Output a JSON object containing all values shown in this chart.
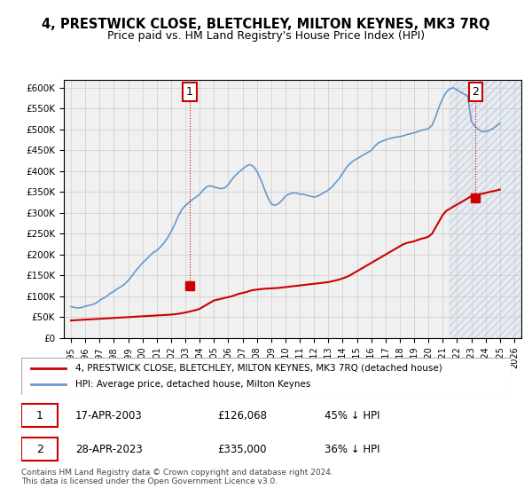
{
  "title": "4, PRESTWICK CLOSE, BLETCHLEY, MILTON KEYNES, MK3 7RQ",
  "subtitle": "Price paid vs. HM Land Registry's House Price Index (HPI)",
  "hpi_color": "#6699cc",
  "price_color": "#cc0000",
  "background_color": "#ffffff",
  "grid_color": "#cccccc",
  "ylim": [
    0,
    620000
  ],
  "yticks": [
    0,
    50000,
    100000,
    150000,
    200000,
    250000,
    300000,
    350000,
    400000,
    450000,
    500000,
    550000,
    600000
  ],
  "xlabel_years": [
    "1995",
    "1996",
    "1997",
    "1998",
    "1999",
    "2000",
    "2001",
    "2002",
    "2003",
    "2004",
    "2005",
    "2006",
    "2007",
    "2008",
    "2009",
    "2010",
    "2011",
    "2012",
    "2013",
    "2014",
    "2015",
    "2016",
    "2017",
    "2018",
    "2019",
    "2020",
    "2021",
    "2022",
    "2023",
    "2024",
    "2025",
    "2026"
  ],
  "transaction1": {
    "year": 2003.3,
    "price": 126068,
    "label": "1"
  },
  "transaction2": {
    "year": 2023.3,
    "price": 335000,
    "label": "2"
  },
  "legend_line1": "4, PRESTWICK CLOSE, BLETCHLEY, MILTON KEYNES, MK3 7RQ (detached house)",
  "legend_line2": "HPI: Average price, detached house, Milton Keynes",
  "footer": "Contains HM Land Registry data © Crown copyright and database right 2024.\nThis data is licensed under the Open Government Licence v3.0.",
  "hpi_data_x": [
    1995.0,
    1995.25,
    1995.5,
    1995.75,
    1996.0,
    1996.25,
    1996.5,
    1996.75,
    1997.0,
    1997.25,
    1997.5,
    1997.75,
    1998.0,
    1998.25,
    1998.5,
    1998.75,
    1999.0,
    1999.25,
    1999.5,
    1999.75,
    2000.0,
    2000.25,
    2000.5,
    2000.75,
    2001.0,
    2001.25,
    2001.5,
    2001.75,
    2002.0,
    2002.25,
    2002.5,
    2002.75,
    2003.0,
    2003.25,
    2003.5,
    2003.75,
    2004.0,
    2004.25,
    2004.5,
    2004.75,
    2005.0,
    2005.25,
    2005.5,
    2005.75,
    2006.0,
    2006.25,
    2006.5,
    2006.75,
    2007.0,
    2007.25,
    2007.5,
    2007.75,
    2008.0,
    2008.25,
    2008.5,
    2008.75,
    2009.0,
    2009.25,
    2009.5,
    2009.75,
    2010.0,
    2010.25,
    2010.5,
    2010.75,
    2011.0,
    2011.25,
    2011.5,
    2011.75,
    2012.0,
    2012.25,
    2012.5,
    2012.75,
    2013.0,
    2013.25,
    2013.5,
    2013.75,
    2014.0,
    2014.25,
    2014.5,
    2014.75,
    2015.0,
    2015.25,
    2015.5,
    2015.75,
    2016.0,
    2016.25,
    2016.5,
    2016.75,
    2017.0,
    2017.25,
    2017.5,
    2017.75,
    2018.0,
    2018.25,
    2018.5,
    2018.75,
    2019.0,
    2019.25,
    2019.5,
    2019.75,
    2020.0,
    2020.25,
    2020.5,
    2020.75,
    2021.0,
    2021.25,
    2021.5,
    2021.75,
    2022.0,
    2022.25,
    2022.5,
    2022.75,
    2023.0,
    2023.25,
    2023.5,
    2023.75,
    2024.0,
    2024.25,
    2024.5,
    2024.75,
    2025.0
  ],
  "hpi_data_y": [
    75000,
    73000,
    72000,
    73000,
    76000,
    78000,
    80000,
    84000,
    90000,
    95000,
    100000,
    107000,
    112000,
    118000,
    123000,
    129000,
    138000,
    148000,
    160000,
    170000,
    180000,
    188000,
    197000,
    205000,
    210000,
    218000,
    228000,
    240000,
    255000,
    272000,
    292000,
    308000,
    318000,
    325000,
    332000,
    338000,
    345000,
    355000,
    363000,
    365000,
    362000,
    360000,
    358000,
    360000,
    368000,
    380000,
    390000,
    398000,
    405000,
    412000,
    416000,
    412000,
    400000,
    382000,
    360000,
    338000,
    322000,
    318000,
    322000,
    330000,
    340000,
    345000,
    348000,
    348000,
    345000,
    345000,
    342000,
    340000,
    338000,
    340000,
    345000,
    350000,
    355000,
    362000,
    372000,
    382000,
    395000,
    408000,
    418000,
    425000,
    430000,
    435000,
    440000,
    445000,
    450000,
    460000,
    468000,
    472000,
    475000,
    478000,
    480000,
    482000,
    483000,
    485000,
    488000,
    490000,
    492000,
    495000,
    498000,
    500000,
    502000,
    510000,
    530000,
    555000,
    575000,
    590000,
    598000,
    600000,
    595000,
    590000,
    585000,
    580000,
    520000,
    508000,
    500000,
    495000,
    495000,
    498000,
    502000,
    508000,
    515000
  ],
  "price_data_x": [
    1995.0,
    1995.25,
    1995.5,
    1995.75,
    1996.0,
    1996.25,
    1996.5,
    1996.75,
    1997.0,
    1997.25,
    1997.5,
    1997.75,
    1998.0,
    1998.25,
    1998.5,
    1998.75,
    1999.0,
    1999.25,
    1999.5,
    1999.75,
    2000.0,
    2000.25,
    2000.5,
    2000.75,
    2001.0,
    2001.25,
    2001.5,
    2001.75,
    2002.0,
    2002.25,
    2002.5,
    2002.75,
    2003.0,
    2003.25,
    2003.5,
    2003.75,
    2004.0,
    2004.25,
    2004.5,
    2004.75,
    2005.0,
    2005.25,
    2005.5,
    2005.75,
    2006.0,
    2006.25,
    2006.5,
    2006.75,
    2007.0,
    2007.25,
    2007.5,
    2007.75,
    2008.0,
    2008.25,
    2008.5,
    2008.75,
    2009.0,
    2009.25,
    2009.5,
    2009.75,
    2010.0,
    2010.25,
    2010.5,
    2010.75,
    2011.0,
    2011.25,
    2011.5,
    2011.75,
    2012.0,
    2012.25,
    2012.5,
    2012.75,
    2013.0,
    2013.25,
    2013.5,
    2013.75,
    2014.0,
    2014.25,
    2014.5,
    2014.75,
    2015.0,
    2015.25,
    2015.5,
    2015.75,
    2016.0,
    2016.25,
    2016.5,
    2016.75,
    2017.0,
    2017.25,
    2017.5,
    2017.75,
    2018.0,
    2018.25,
    2018.5,
    2018.75,
    2019.0,
    2019.25,
    2019.5,
    2019.75,
    2020.0,
    2020.25,
    2020.5,
    2020.75,
    2021.0,
    2021.25,
    2021.5,
    2021.75,
    2022.0,
    2022.25,
    2022.5,
    2022.75,
    2023.0,
    2023.25,
    2023.5,
    2023.75,
    2024.0,
    2024.25,
    2024.5,
    2024.75,
    2025.0
  ],
  "price_data_y": [
    42000,
    42500,
    43000,
    43500,
    44000,
    44500,
    45000,
    45500,
    46000,
    46500,
    47000,
    47500,
    48000,
    48500,
    49000,
    49500,
    50000,
    50500,
    51000,
    51500,
    52000,
    52500,
    53000,
    53500,
    54000,
    54500,
    55000,
    55500,
    56000,
    57000,
    58000,
    59500,
    61000,
    63000,
    65000,
    67000,
    70000,
    75000,
    80000,
    85000,
    90000,
    92000,
    94000,
    96000,
    98000,
    100000,
    103000,
    106000,
    108000,
    110000,
    113000,
    115000,
    116000,
    117000,
    118000,
    118500,
    119000,
    119500,
    120000,
    121000,
    122000,
    123000,
    124000,
    125000,
    126000,
    127000,
    128000,
    129000,
    130000,
    131000,
    132000,
    133000,
    134000,
    136000,
    138000,
    140000,
    143000,
    146000,
    150000,
    155000,
    160000,
    165000,
    170000,
    175000,
    180000,
    185000,
    190000,
    195000,
    200000,
    205000,
    210000,
    215000,
    220000,
    225000,
    228000,
    230000,
    232000,
    235000,
    238000,
    240000,
    243000,
    250000,
    265000,
    280000,
    295000,
    305000,
    310000,
    315000,
    320000,
    325000,
    330000,
    335000,
    340000,
    342000,
    344000,
    346000,
    348000,
    350000,
    352000,
    354000,
    356000
  ]
}
